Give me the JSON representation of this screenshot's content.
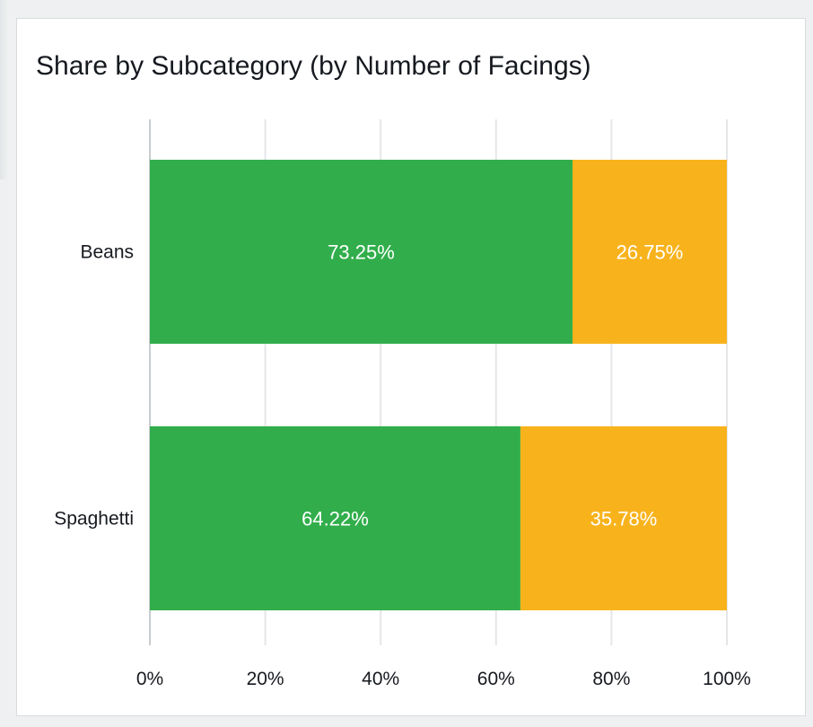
{
  "chart_data": {
    "type": "bar",
    "orientation": "horizontal",
    "stacked": true,
    "title": "Share by Subcategory (by Number of Facings)",
    "categories": [
      "Beans",
      "Spaghetti"
    ],
    "series": [
      {
        "color": "#31ae4b",
        "values": [
          73.25,
          64.22
        ],
        "labels": [
          "73.25%",
          "64.22%"
        ]
      },
      {
        "color": "#f8b31c",
        "values": [
          26.75,
          35.78
        ],
        "labels": [
          "26.75%",
          "35.78%"
        ]
      }
    ],
    "xlim": [
      0,
      100
    ],
    "xticks": [
      0,
      20,
      40,
      60,
      80,
      100
    ],
    "xtick_labels": [
      "0%",
      "20%",
      "40%",
      "60%",
      "80%",
      "100%"
    ],
    "grid": true,
    "legend": "none"
  }
}
